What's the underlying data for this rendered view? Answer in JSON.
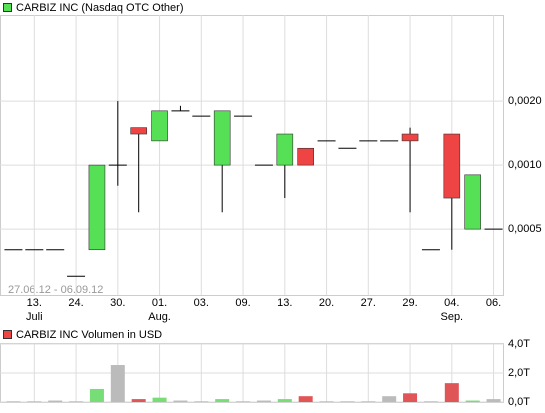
{
  "chart_data": [
    {
      "type": "candlestick",
      "title": "CARBIZ INC (Nasdaq OTC Other)",
      "date_range": "27.06.12 - 06.09.12",
      "categories": [
        null,
        "13.",
        null,
        "24.",
        null,
        "30.",
        null,
        "01.",
        null,
        "03.",
        null,
        "09.",
        null,
        "13.",
        null,
        "20.",
        null,
        "27.",
        null,
        "29.",
        null,
        "04.",
        null,
        "06."
      ],
      "months": [
        null,
        "Juli",
        null,
        null,
        null,
        null,
        null,
        "Aug.",
        null,
        null,
        null,
        null,
        null,
        null,
        null,
        null,
        null,
        null,
        null,
        null,
        null,
        "Sep.",
        null,
        null
      ],
      "open": [
        0.0004,
        0.0004,
        0.0004,
        0.0003,
        0.0004,
        0.001,
        0.0015,
        0.0013,
        0.0018,
        0.0017,
        0.001,
        0.0017,
        0.001,
        0.001,
        0.0012,
        0.0013,
        0.0012,
        0.0013,
        0.0013,
        0.0014,
        0.0004,
        0.0014,
        0.0005,
        0.0005
      ],
      "high": [
        0.0004,
        0.0004,
        0.0004,
        0.0003,
        0.001,
        0.002,
        0.0015,
        0.0018,
        0.0019,
        0.0017,
        0.0018,
        0.0017,
        0.001,
        0.0014,
        0.0012,
        0.0013,
        0.0012,
        0.0013,
        0.0013,
        0.0015,
        0.0004,
        0.0014,
        0.0009,
        0.0005
      ],
      "low": [
        0.0004,
        0.0004,
        0.0004,
        0.0003,
        0.0004,
        0.0008,
        0.0006,
        0.0013,
        0.0018,
        0.0017,
        0.0006,
        0.0017,
        0.001,
        0.0007,
        0.001,
        0.0013,
        0.0012,
        0.0013,
        0.0013,
        0.0006,
        0.0004,
        0.0004,
        0.0005,
        0.0005
      ],
      "close": [
        0.0004,
        0.0004,
        0.0004,
        0.0003,
        0.001,
        0.001,
        0.0014,
        0.0018,
        0.0018,
        0.0017,
        0.0018,
        0.0017,
        0.001,
        0.0014,
        0.001,
        0.0013,
        0.0012,
        0.0013,
        0.0013,
        0.0013,
        0.0004,
        0.0007,
        0.0009,
        0.0005
      ],
      "ylim": [
        0.000245,
        0.00508
      ],
      "yticks": [
        {
          "value": 0.0005,
          "label": "0,0005"
        },
        {
          "value": 0.001,
          "label": "0,0010"
        },
        {
          "value": 0.002,
          "label": "0,0020"
        }
      ],
      "log_scale": true,
      "grid": true,
      "up_color": "#55e055",
      "down_color": "#ee4444",
      "flat_color": "#000000"
    },
    {
      "type": "bar",
      "title": "CARBIZ INC Volumen in USD",
      "values": [
        0.05,
        0.05,
        0.1,
        0.05,
        0.9,
        2.55,
        0.2,
        0.3,
        0.1,
        0.05,
        0.2,
        0.05,
        0.1,
        0.2,
        0.4,
        0.05,
        0.05,
        0.05,
        0.4,
        0.6,
        0.05,
        1.3,
        0.1,
        0.2
      ],
      "ylim": [
        0,
        4
      ],
      "yticks": [
        {
          "value": 0,
          "label": "0,0T"
        },
        {
          "value": 2,
          "label": "2,0T"
        },
        {
          "value": 4,
          "label": "4,0T"
        }
      ],
      "grid": true,
      "up_color": "#77dd77",
      "down_color": "#e05555",
      "flat_color": "#bbbbbb"
    }
  ]
}
